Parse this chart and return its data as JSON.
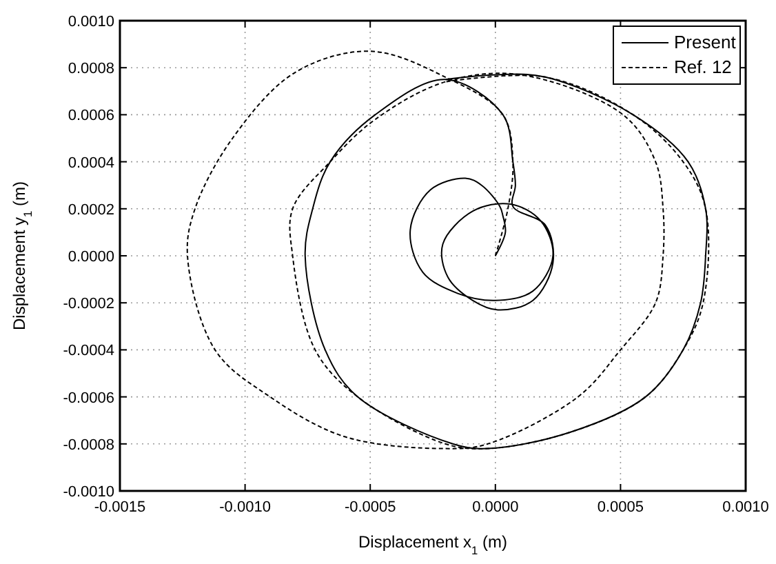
{
  "chart_data": {
    "type": "line",
    "xlabel": "Displacement x$_{1}$ (m)",
    "ylabel": "Displacement y$_{1}$ (m)",
    "xlim": [
      -0.0015,
      0.001
    ],
    "ylim": [
      -0.001,
      0.001
    ],
    "xticks": [
      {
        "value": -0.0015,
        "label": "-0.0015"
      },
      {
        "value": -0.001,
        "label": "-0.0010"
      },
      {
        "value": -0.0005,
        "label": "-0.0005"
      },
      {
        "value": 0,
        "label": "0.0000"
      },
      {
        "value": 0.0005,
        "label": "0.0005"
      },
      {
        "value": 0.001,
        "label": "0.0010"
      }
    ],
    "yticks": [
      {
        "value": -0.001,
        "label": "-0.0010"
      },
      {
        "value": -0.0008,
        "label": "-0.0008"
      },
      {
        "value": -0.0006,
        "label": "-0.0006"
      },
      {
        "value": -0.0004,
        "label": "-0.0004"
      },
      {
        "value": -0.0002,
        "label": "-0.0002"
      },
      {
        "value": 0,
        "label": "0.0000"
      },
      {
        "value": 0.0002,
        "label": "0.0002"
      },
      {
        "value": 0.0004,
        "label": "0.0004"
      },
      {
        "value": 0.0006,
        "label": "0.0006"
      },
      {
        "value": 0.0008,
        "label": "0.0008"
      },
      {
        "value": 0.001,
        "label": "0.0010"
      }
    ],
    "grid": true,
    "legend": "top right",
    "marker": "none",
    "series": [
      {
        "name": "Present",
        "color": "#000000",
        "line_style": "solid",
        "x": [
          0,
          4e-05,
          3e-05,
          1.8e-05,
          -5.5e-05,
          -0.00012,
          -0.00026,
          -0.00034,
          -0.00029,
          -0.00015,
          0,
          0.00015,
          0.00023,
          0.00018,
          6e-05,
          -9e-05,
          -0.00021,
          -0.00019,
          -9e-05,
          1e-05,
          0.00015,
          0.00023,
          0.0002,
          7e-05,
          8e-05,
          7e-05,
          3e-05,
          -0.0002,
          -0.00048,
          -0.00066,
          -0.00073,
          -0.00076,
          -0.00068,
          -0.00055,
          -0.00017,
          -3e-05,
          0.0003,
          0.0006,
          0.00075,
          0.00082,
          0.00084,
          0.00084,
          0.00077,
          0.00055,
          0.0002,
          0,
          -0.0002
        ],
        "values": [
          0,
          0.0001,
          0.00017,
          0.00021,
          0.0003,
          0.00033,
          0.00028,
          0.00011,
          -7e-05,
          -0.00016,
          -0.00019,
          -0.00015,
          0,
          0.00015,
          0.00022,
          0.00019,
          5e-05,
          -9e-05,
          -0.00019,
          -0.00023,
          -0.00019,
          -3e-05,
          0.00013,
          0.00021,
          0.0003,
          0.0004,
          0.0006,
          0.00075,
          0.0006,
          0.0004,
          0.0002,
          0,
          -0.0004,
          -0.0006,
          -0.0008,
          -0.00082,
          -0.00075,
          -0.0006,
          -0.0004,
          -0.0002,
          0,
          0.0002,
          0.0004,
          0.0006,
          0.00076,
          0.00077,
          0.00075
        ]
      },
      {
        "name": "Ref. 12",
        "color": "#000000",
        "line_style": "dashed",
        "x": [
          0,
          5e-05,
          7e-05,
          3e-05,
          -0.0002,
          -0.0005,
          -0.0008,
          -0.00105,
          -0.0012,
          -0.00123,
          -0.00112,
          -0.0009,
          -0.0006,
          -0.0002,
          -3e-05,
          0.00033,
          0.0005,
          0.00064,
          0.00067,
          0.00067,
          0.00064,
          0.00051,
          0.0001,
          -0.0002,
          -0.00048,
          -0.00066,
          -0.00081,
          -0.00081,
          -0.00072,
          -0.00055,
          -0.0002,
          -3e-05,
          0.0003,
          0.0006,
          0.00075,
          0.00083,
          0.00084,
          0.00075,
          0.00055,
          0.0002,
          -0.0002
        ],
        "values": [
          0,
          0.0002,
          0.0004,
          0.0006,
          0.00076,
          0.00087,
          0.00078,
          0.0005,
          0.0002,
          0,
          -0.0004,
          -0.0006,
          -0.00077,
          -0.00082,
          -0.0008,
          -0.0006,
          -0.0004,
          -0.0002,
          0,
          0.0002,
          0.0004,
          0.0006,
          0.00077,
          0.00074,
          0.00058,
          0.0004,
          0.0002,
          0,
          -0.0004,
          -0.0006,
          -0.0008,
          -0.00082,
          -0.00075,
          -0.0006,
          -0.0004,
          -0.0002,
          0.0002,
          0.0004,
          0.0006,
          0.00076,
          0.00074
        ]
      }
    ]
  }
}
